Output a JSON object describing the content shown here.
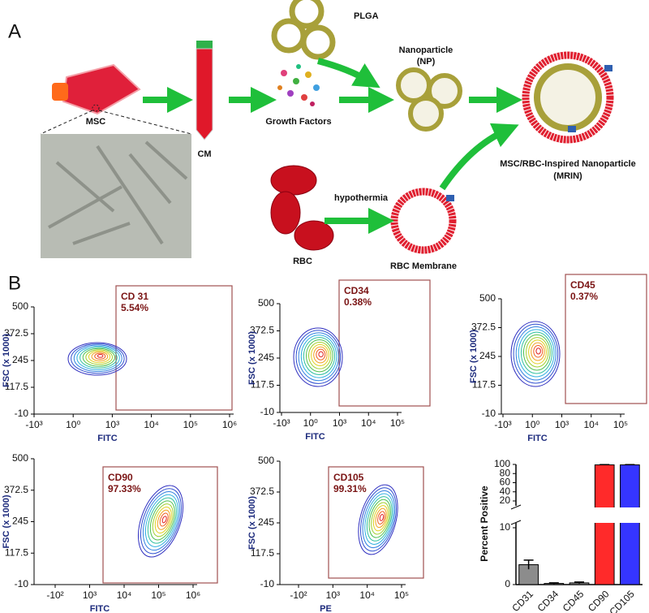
{
  "panel_a": {
    "label": "A",
    "flask": "MSC",
    "tube": "CM",
    "growth": "Growth Factors",
    "plga": "PLGA",
    "np": [
      "Nanoparticle",
      "(NP)"
    ],
    "mrin": [
      "MSC/RBC-Inspired Nanoparticle",
      "(MRIN)"
    ],
    "rbc": "RBC",
    "hypothermia": "hypothermia",
    "membrane": "RBC Membrane"
  },
  "panel_b": {
    "label": "B",
    "flow_plots": [
      {
        "gate": "CD 31",
        "percent": "5.54%",
        "xlabel": "FITC",
        "ylabel": "FSC (x 1000)",
        "ylim": [
          -10,
          500
        ],
        "yticks": [
          -10,
          117.5,
          245,
          372.5,
          500
        ],
        "xticks": [
          {
            "value": -1000,
            "label": "-10³"
          },
          {
            "value": 1,
            "label": "10⁰"
          },
          {
            "value": 1000,
            "label": "10³"
          },
          {
            "value": 10000,
            "label": "10⁴"
          },
          {
            "value": 100000,
            "label": "10⁵"
          },
          {
            "value": 1000000,
            "label": "10⁶"
          }
        ]
      },
      {
        "gate": "CD34",
        "percent": "0.38%",
        "xlabel": "FITC",
        "ylabel": "FSC (x 1000)",
        "ylim": [
          -10,
          500
        ],
        "yticks": [
          -10,
          117.5,
          245,
          372.5,
          500
        ],
        "xticks": [
          {
            "value": -1000,
            "label": "-10³"
          },
          {
            "value": 1,
            "label": "10⁰"
          },
          {
            "value": 1000,
            "label": "10³"
          },
          {
            "value": 10000,
            "label": "10⁴"
          },
          {
            "value": 100000,
            "label": "10⁵"
          }
        ]
      },
      {
        "gate": "CD45",
        "percent": "0.37%",
        "xlabel": "FITC",
        "ylabel": "FSC (x 1000)",
        "ylim": [
          -10,
          500
        ],
        "yticks": [
          -10,
          117.5,
          245,
          372.5,
          500
        ],
        "xticks": [
          {
            "value": -1000,
            "label": "-10³"
          },
          {
            "value": 1,
            "label": "10⁰"
          },
          {
            "value": 1000,
            "label": "10³"
          },
          {
            "value": 10000,
            "label": "10⁴"
          },
          {
            "value": 100000,
            "label": "10⁵"
          }
        ]
      },
      {
        "gate": "CD90",
        "percent": "97.33%",
        "xlabel": "FITC",
        "ylabel": "FSC (x 1000)",
        "ylim": [
          -10,
          500
        ],
        "yticks": [
          -10,
          117.5,
          245,
          372.5,
          500
        ],
        "xticks": [
          {
            "value": -100,
            "label": "-10²"
          },
          {
            "value": 1000,
            "label": "10³"
          },
          {
            "value": 10000,
            "label": "10⁴"
          },
          {
            "value": 100000,
            "label": "10⁵"
          },
          {
            "value": 1000000,
            "label": "10⁶"
          }
        ]
      },
      {
        "gate": "CD105",
        "percent": "99.31%",
        "xlabel": "PE",
        "ylabel": "FSC (x 1000)",
        "ylim": [
          -10,
          500
        ],
        "yticks": [
          -10,
          117.5,
          245,
          372.5,
          500
        ],
        "xticks": [
          {
            "value": -100,
            "label": "-10²"
          },
          {
            "value": 1000,
            "label": "10³"
          },
          {
            "value": 10000,
            "label": "10⁴"
          },
          {
            "value": 100000,
            "label": "10⁵"
          }
        ]
      }
    ]
  },
  "chart_data": {
    "type": "bar",
    "ylabel": "Percent Positive",
    "categories": [
      "CD31",
      "CD34",
      "CD45",
      "CD90",
      "CD105"
    ],
    "values": [
      3.5,
      0.2,
      0.3,
      99,
      99
    ],
    "errors": [
      0.8,
      0.1,
      0.15,
      0.5,
      0.5
    ],
    "colors": [
      "#8c8c8c",
      "#8c8c8c",
      "#8c8c8c",
      "#ff2a2a",
      "#3535ff"
    ],
    "ylim": [
      0,
      100
    ],
    "yticks": [
      0,
      10,
      20,
      40,
      60,
      80,
      100
    ],
    "axis_break": [
      10,
      20
    ]
  }
}
